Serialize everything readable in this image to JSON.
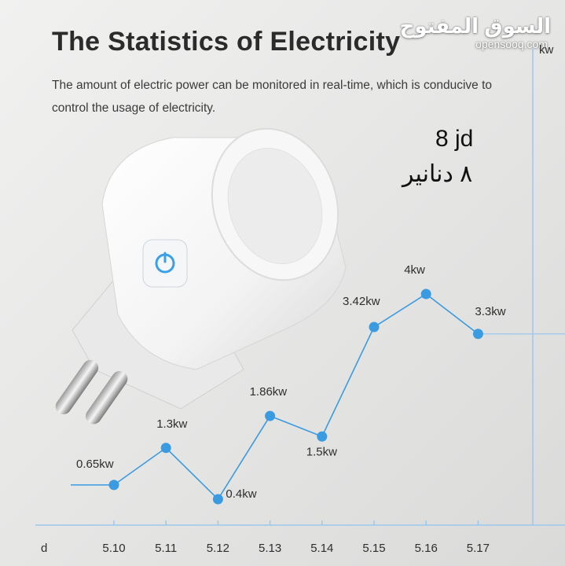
{
  "watermark": {
    "arabic": "السوق المفتوح",
    "latin": "opensooq.com"
  },
  "price": {
    "english": "8 jd",
    "arabic": "٨ دنانير"
  },
  "chart_data": {
    "type": "line",
    "title": "The Statistics of Electricity",
    "subtitle": "The amount of electric power can be monitored in real-time, which is conducive to control the usage of electricity.",
    "xlabel": "d",
    "ylabel": "kw",
    "categories": [
      "5.10",
      "5.11",
      "5.12",
      "5.13",
      "5.14",
      "5.15",
      "5.16",
      "5.17"
    ],
    "series": [
      {
        "values": [
          0.65,
          1.3,
          0.4,
          1.86,
          1.5,
          3.42,
          4,
          3.3
        ],
        "labels": [
          "0.65kw",
          "1.3kw",
          "0.4kw",
          "1.86kw",
          "1.5kw",
          "3.42kw",
          "4kw",
          "3.3kw"
        ],
        "color": "#3b9be0"
      }
    ],
    "grid": false,
    "legend": "none"
  }
}
